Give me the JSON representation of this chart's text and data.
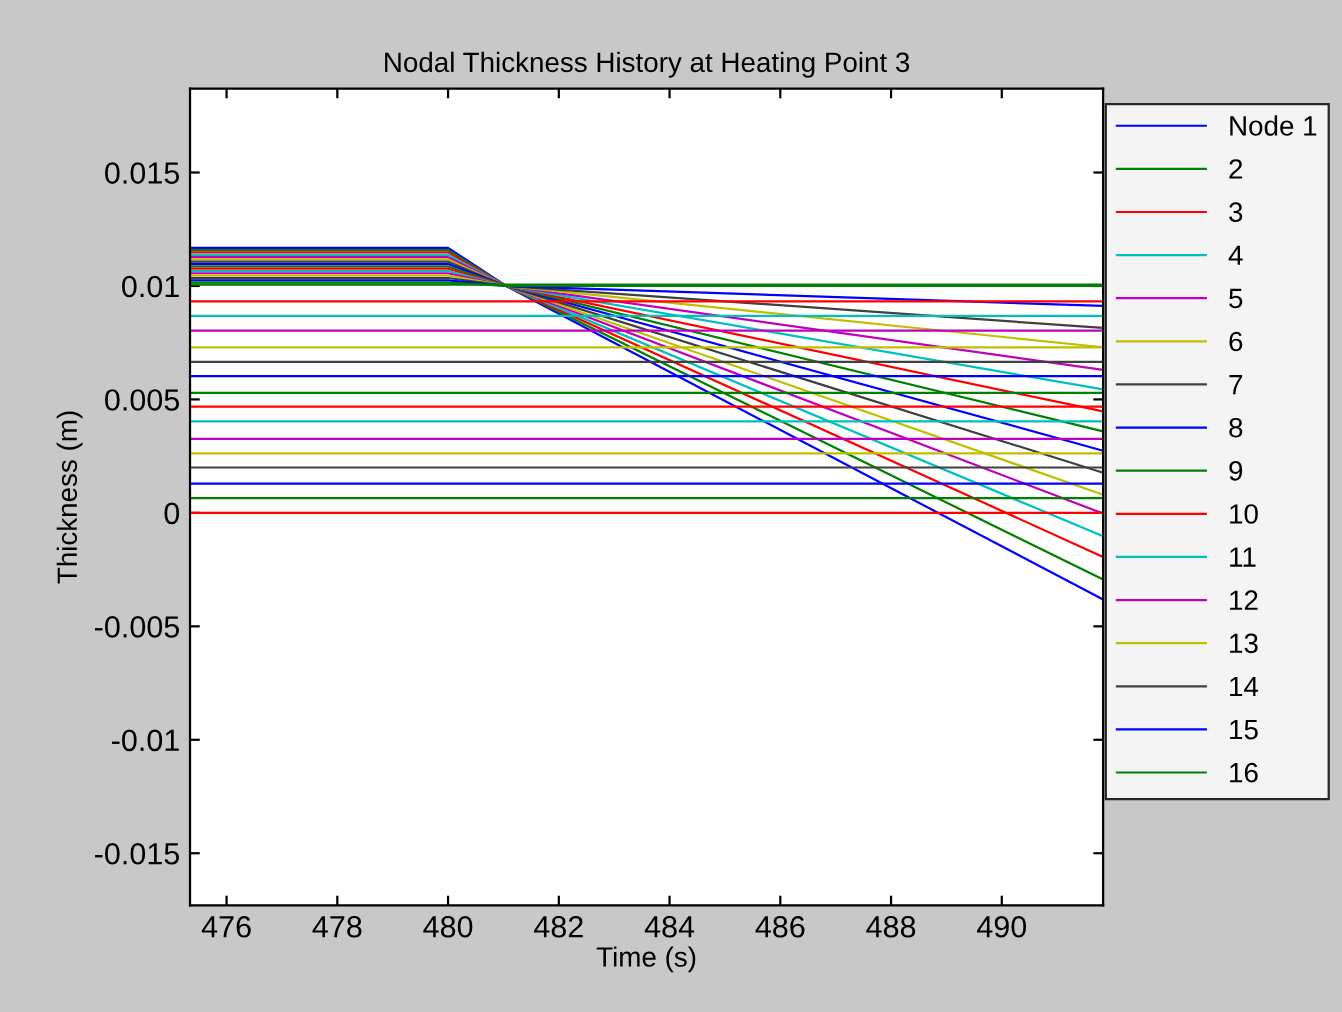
{
  "chart_data": {
    "type": "line",
    "title": "Nodal Thickness History at Heating Point 3",
    "xlabel": "Time (s)",
    "ylabel": "Thickness (m)",
    "xlim": [
      475.34,
      491.83
    ],
    "ylim": [
      -0.0173,
      0.0187
    ],
    "xticks": [
      476,
      478,
      480,
      482,
      484,
      486,
      488,
      490
    ],
    "yticks": [
      -0.015,
      -0.01,
      -0.005,
      0,
      0.005,
      0.01,
      0.015
    ],
    "grid": false,
    "legend": "right",
    "line_style": "solid",
    "marker": "none",
    "series": [
      {
        "name": "Node 1",
        "color": "#0000ff",
        "x": [
          475.34,
          480,
          481.05,
          491.83
        ],
        "values": [
          0.01168,
          0.01168,
          0.01,
          -0.00382
        ]
      },
      {
        "name": "2",
        "color": "#008000",
        "x": [
          475.34,
          480,
          481.05,
          491.83
        ],
        "values": [
          0.01158,
          0.01158,
          0.01,
          -0.00294
        ]
      },
      {
        "name": "3",
        "color": "#ff0000",
        "x": [
          475.34,
          480,
          481.05,
          491.83
        ],
        "values": [
          0.01148,
          0.01148,
          0.01,
          -0.00194
        ]
      },
      {
        "name": "4",
        "color": "#00bfbf",
        "x": [
          475.34,
          480,
          481.05,
          491.83
        ],
        "values": [
          0.01137,
          0.01137,
          0.01,
          -0.00103
        ]
      },
      {
        "name": "5",
        "color": "#bf00bf",
        "x": [
          475.34,
          480,
          481.05,
          491.83
        ],
        "values": [
          0.01127,
          0.01127,
          0.01,
          -3e-05
        ]
      },
      {
        "name": "6",
        "color": "#bfbf00",
        "x": [
          475.34,
          480,
          481.05,
          491.83
        ],
        "values": [
          0.01117,
          0.01117,
          0.01,
          0.0008
        ]
      },
      {
        "name": "7",
        "color": "#404040",
        "x": [
          475.34,
          480,
          481.05,
          491.83
        ],
        "values": [
          0.01107,
          0.01107,
          0.01,
          0.00177
        ]
      },
      {
        "name": "8",
        "color": "#0000ff",
        "x": [
          475.34,
          480,
          481.05,
          491.83
        ],
        "values": [
          0.01097,
          0.01097,
          0.01,
          0.00274
        ]
      },
      {
        "name": "9",
        "color": "#008000",
        "x": [
          475.34,
          480,
          481.05,
          491.83
        ],
        "values": [
          0.01086,
          0.01086,
          0.01,
          0.00359
        ]
      },
      {
        "name": "10",
        "color": "#ff0000",
        "x": [
          475.34,
          480,
          481.05,
          491.83
        ],
        "values": [
          0.01076,
          0.01076,
          0.01,
          0.00447
        ]
      },
      {
        "name": "11",
        "color": "#00bfbf",
        "x": [
          475.34,
          480,
          481.05,
          491.83
        ],
        "values": [
          0.01066,
          0.01066,
          0.01,
          0.00544
        ]
      },
      {
        "name": "12",
        "color": "#bf00bf",
        "x": [
          475.34,
          480,
          481.05,
          491.83
        ],
        "values": [
          0.01056,
          0.01056,
          0.01,
          0.0063
        ]
      },
      {
        "name": "13",
        "color": "#bfbf00",
        "x": [
          475.34,
          480,
          481.05,
          491.83
        ],
        "values": [
          0.01046,
          0.01046,
          0.01,
          0.0073
        ]
      },
      {
        "name": "14",
        "color": "#404040",
        "x": [
          475.34,
          480,
          481.05,
          491.83
        ],
        "values": [
          0.01035,
          0.01035,
          0.01,
          0.00815
        ]
      },
      {
        "name": "15",
        "color": "#0000ff",
        "x": [
          475.34,
          480,
          481.05,
          491.83
        ],
        "values": [
          0.01025,
          0.01025,
          0.01,
          0.00912
        ]
      },
      {
        "name": "16",
        "color": "#008000",
        "x": [
          475.34,
          480,
          481.05,
          491.83
        ],
        "values": [
          0.01015,
          0.01015,
          0.01,
          0.01
        ]
      },
      {
        "color": "#ff0000",
        "x": [
          475.34,
          491.83
        ],
        "values": [
          0,
          0
        ]
      },
      {
        "color": "#008000",
        "x": [
          475.34,
          491.83
        ],
        "values": [
          0.00065,
          0.00065
        ]
      },
      {
        "color": "#0000ff",
        "x": [
          475.34,
          491.83
        ],
        "values": [
          0.00129,
          0.00129
        ]
      },
      {
        "color": "#404040",
        "x": [
          475.34,
          491.83
        ],
        "values": [
          0.002,
          0.002
        ]
      },
      {
        "color": "#bfbf00",
        "x": [
          475.34,
          491.83
        ],
        "values": [
          0.00262,
          0.00262
        ]
      },
      {
        "color": "#bf00bf",
        "x": [
          475.34,
          491.83
        ],
        "values": [
          0.00326,
          0.00326
        ]
      },
      {
        "color": "#00bfbf",
        "x": [
          475.34,
          491.83
        ],
        "values": [
          0.00403,
          0.00403
        ]
      },
      {
        "color": "#ff0000",
        "x": [
          475.34,
          491.83
        ],
        "values": [
          0.00468,
          0.00468
        ]
      },
      {
        "color": "#008000",
        "x": [
          475.34,
          491.83
        ],
        "values": [
          0.00529,
          0.00529
        ]
      },
      {
        "color": "#0000ff",
        "x": [
          475.34,
          491.83
        ],
        "values": [
          0.00603,
          0.00603
        ]
      },
      {
        "color": "#404040",
        "x": [
          475.34,
          491.83
        ],
        "values": [
          0.00665,
          0.00665
        ]
      },
      {
        "color": "#bfbf00",
        "x": [
          475.34,
          491.83
        ],
        "values": [
          0.00729,
          0.00729
        ]
      },
      {
        "color": "#bf00bf",
        "x": [
          475.34,
          491.83
        ],
        "values": [
          0.00803,
          0.00803
        ]
      },
      {
        "color": "#00bfbf",
        "x": [
          475.34,
          491.83
        ],
        "values": [
          0.00868,
          0.00868
        ]
      },
      {
        "color": "#ff0000",
        "x": [
          475.34,
          491.83
        ],
        "values": [
          0.00932,
          0.00932
        ]
      },
      {
        "color": "#008000",
        "x": [
          475.34,
          491.83
        ],
        "values": [
          0.01006,
          0.01006
        ]
      }
    ]
  }
}
